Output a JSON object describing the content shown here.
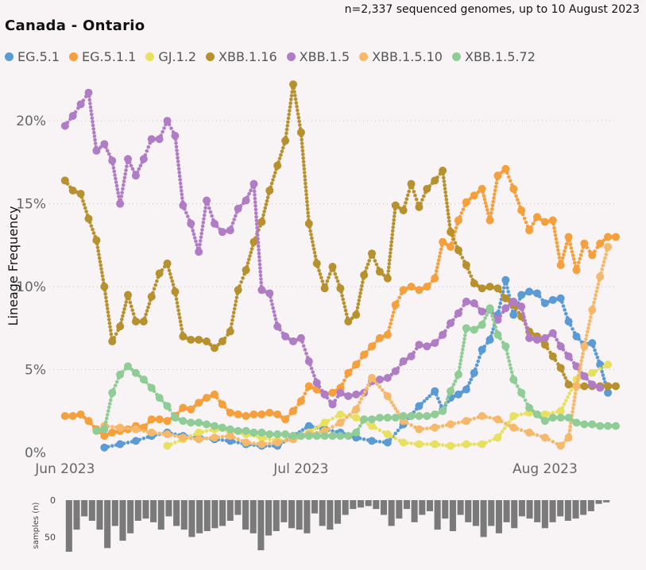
{
  "chart_data": {
    "type": "line",
    "title": "Canada - Ontario",
    "subtitle": "n=2,337 sequenced genomes, up to 10 August 2023",
    "ylabel": "Lineage Frequency",
    "ylim": [
      0,
      22.5
    ],
    "yticks": [
      "0%",
      "5%",
      "10%",
      "15%",
      "20%"
    ],
    "ytick_values": [
      0,
      5,
      10,
      15,
      20
    ],
    "xlim": [
      0,
      72
    ],
    "xticks": [
      "Jun 2023",
      "Jul 2023",
      "Aug 2023"
    ],
    "xtick_days": [
      2,
      32,
      63
    ],
    "x_unit": "days since 30 May 2023",
    "series": [
      {
        "name": "EG.5.1",
        "color": "#5b9bd5",
        "x": [
          7,
          9,
          11,
          13,
          15,
          17,
          19,
          21,
          23,
          25,
          27,
          29,
          31,
          33,
          35,
          37,
          39,
          41,
          43,
          45,
          47,
          49,
          50,
          51,
          52,
          53,
          54,
          55,
          56,
          57,
          58,
          59,
          60,
          61,
          62,
          63,
          64,
          65,
          66,
          67,
          68,
          69,
          70,
          71
        ],
        "y": [
          0.3,
          0.5,
          0.7,
          1.0,
          1.2,
          1.0,
          0.9,
          0.8,
          0.7,
          0.5,
          0.4,
          0.4,
          1.0,
          1.6,
          1.4,
          1.2,
          0.9,
          0.7,
          0.6,
          1.7,
          2.8,
          3.7,
          2.6,
          3.3,
          3.5,
          3.8,
          4.8,
          6.2,
          6.8,
          8.3,
          10.4,
          8.3,
          9.5,
          9.7,
          9.6,
          9.0,
          9.2,
          9.3,
          7.9,
          7.0,
          6.5,
          6.6,
          5.3,
          3.6
        ]
      },
      {
        "name": "EG.5.1.1",
        "color": "#f5a03d",
        "x": [
          2,
          3,
          4,
          5,
          6,
          7,
          8,
          9,
          10,
          11,
          12,
          13,
          14,
          15,
          16,
          17,
          18,
          19,
          20,
          21,
          22,
          23,
          24,
          25,
          26,
          27,
          28,
          29,
          30,
          31,
          32,
          33,
          34,
          35,
          36,
          37,
          38,
          39,
          40,
          41,
          42,
          43,
          44,
          45,
          46,
          47,
          48,
          49,
          50,
          51,
          52,
          53,
          54,
          55,
          56,
          57,
          58,
          59,
          60,
          61,
          62,
          63,
          64,
          65,
          66,
          67,
          68,
          69,
          70,
          71,
          72
        ],
        "y": [
          2.2,
          2.2,
          2.3,
          1.9,
          1.4,
          1.0,
          1.2,
          1.3,
          1.4,
          1.6,
          1.5,
          2.0,
          2.0,
          1.9,
          2.2,
          2.7,
          2.6,
          3.0,
          3.3,
          3.5,
          2.9,
          2.4,
          2.3,
          2.2,
          2.3,
          2.3,
          2.4,
          2.3,
          2.0,
          2.5,
          3.1,
          4.0,
          3.8,
          3.5,
          3.6,
          3.9,
          4.8,
          5.3,
          5.9,
          6.4,
          6.9,
          7.1,
          8.9,
          9.8,
          10.0,
          9.8,
          10.0,
          10.5,
          12.7,
          12.4,
          14.0,
          15.1,
          15.5,
          15.9,
          14.0,
          16.7,
          17.1,
          15.9,
          14.6,
          13.4,
          14.2,
          13.9,
          14.0,
          11.3,
          13.0,
          11.0,
          12.6,
          11.9,
          12.6,
          13.0,
          13.0
        ]
      },
      {
        "name": "GJ.1.2",
        "color": "#e8e060",
        "x": [
          15,
          17,
          19,
          21,
          23,
          25,
          27,
          29,
          31,
          33,
          35,
          37,
          39,
          41,
          43,
          45,
          47,
          49,
          51,
          53,
          55,
          57,
          59,
          61,
          63,
          65,
          67,
          69,
          71
        ],
        "y": [
          0.4,
          0.8,
          1.2,
          1.4,
          1.3,
          1.1,
          0.9,
          0.7,
          0.8,
          1.2,
          1.8,
          2.3,
          2.1,
          1.6,
          1.1,
          0.6,
          0.5,
          0.5,
          0.4,
          0.5,
          0.5,
          0.9,
          2.2,
          2.4,
          2.3,
          2.5,
          4.4,
          4.8,
          5.3
        ]
      },
      {
        "name": "XBB.1.16",
        "color": "#b8912f",
        "x": [
          2,
          3,
          4,
          5,
          6,
          7,
          8,
          9,
          10,
          11,
          12,
          13,
          14,
          15,
          16,
          17,
          18,
          19,
          20,
          21,
          22,
          23,
          24,
          25,
          26,
          27,
          28,
          29,
          30,
          31,
          32,
          33,
          34,
          35,
          36,
          37,
          38,
          39,
          40,
          41,
          42,
          43,
          44,
          45,
          46,
          47,
          48,
          49,
          50,
          51,
          52,
          53,
          54,
          55,
          56,
          57,
          58,
          59,
          60,
          61,
          62,
          63,
          64,
          65,
          66,
          67,
          68,
          69,
          70,
          71,
          72
        ],
        "y": [
          16.4,
          15.8,
          15.6,
          14.1,
          12.8,
          10.0,
          6.7,
          7.6,
          9.5,
          7.9,
          7.9,
          9.4,
          10.8,
          11.4,
          9.7,
          7.0,
          6.8,
          6.8,
          6.7,
          6.3,
          6.7,
          7.3,
          9.8,
          11.0,
          12.7,
          13.9,
          15.8,
          17.3,
          18.8,
          22.2,
          19.3,
          13.8,
          11.4,
          9.9,
          11.2,
          9.9,
          7.9,
          8.3,
          10.7,
          12.0,
          10.9,
          10.5,
          14.9,
          14.6,
          16.2,
          14.8,
          15.9,
          16.4,
          17.0,
          13.3,
          12.2,
          11.3,
          10.2,
          9.9,
          10.0,
          9.9,
          9.3,
          8.9,
          8.2,
          7.3,
          7.0,
          6.5,
          5.8,
          5.1,
          4.1,
          4.0,
          4.0,
          4.0,
          4.0,
          4.0,
          4.0
        ]
      },
      {
        "name": "XBB.1.5",
        "color": "#b07cc6",
        "x": [
          2,
          3,
          4,
          5,
          6,
          7,
          8,
          9,
          10,
          11,
          12,
          13,
          14,
          15,
          16,
          17,
          18,
          19,
          20,
          21,
          22,
          23,
          24,
          25,
          26,
          27,
          28,
          29,
          30,
          31,
          32,
          33,
          34,
          35,
          36,
          37,
          38,
          39,
          40,
          41,
          42,
          43,
          44,
          45,
          46,
          47,
          48,
          49,
          50,
          51,
          52,
          53,
          54,
          55,
          56,
          57,
          58,
          59,
          60,
          61,
          62,
          63,
          64,
          65,
          66,
          67,
          68,
          69,
          70
        ],
        "y": [
          19.7,
          20.3,
          21.0,
          21.7,
          18.2,
          18.6,
          17.6,
          15.0,
          17.7,
          16.7,
          17.7,
          18.9,
          18.9,
          20.0,
          19.1,
          14.9,
          13.8,
          12.1,
          15.2,
          13.8,
          13.3,
          13.4,
          14.7,
          15.2,
          16.2,
          9.8,
          9.6,
          7.6,
          7.0,
          6.7,
          6.9,
          5.5,
          4.2,
          3.5,
          2.9,
          3.6,
          3.4,
          3.5,
          3.6,
          4.3,
          4.4,
          4.5,
          4.9,
          5.5,
          5.8,
          6.5,
          6.4,
          6.6,
          7.1,
          7.8,
          8.4,
          9.1,
          9.0,
          8.5,
          8.6,
          8.0,
          8.7,
          9.1,
          8.8,
          6.9,
          6.8,
          6.9,
          7.2,
          6.4,
          5.8,
          5.2,
          4.6,
          4.1,
          3.9
        ]
      },
      {
        "name": "XBB.1.5.10",
        "color": "#f6b96b",
        "x": [
          7,
          9,
          11,
          13,
          15,
          17,
          19,
          21,
          23,
          25,
          27,
          29,
          31,
          33,
          35,
          37,
          39,
          41,
          43,
          45,
          47,
          49,
          51,
          53,
          55,
          57,
          59,
          61,
          63,
          65,
          66,
          67,
          68,
          69,
          70,
          71
        ],
        "y": [
          1.6,
          1.5,
          1.4,
          1.2,
          1.1,
          0.9,
          0.8,
          0.9,
          1.0,
          0.6,
          0.5,
          0.6,
          0.8,
          1.1,
          1.3,
          1.8,
          2.6,
          4.5,
          3.4,
          1.9,
          1.4,
          1.5,
          1.7,
          1.9,
          2.2,
          2.0,
          1.5,
          1.2,
          0.9,
          0.4,
          0.9,
          4.0,
          6.4,
          8.6,
          10.6,
          12.4
        ]
      },
      {
        "name": "XBB.1.5.72",
        "color": "#8fcc96",
        "x": [
          6,
          7,
          8,
          9,
          10,
          11,
          12,
          13,
          14,
          15,
          16,
          17,
          18,
          19,
          20,
          21,
          22,
          23,
          24,
          25,
          26,
          27,
          28,
          29,
          30,
          31,
          32,
          33,
          34,
          35,
          36,
          37,
          38,
          39,
          40,
          41,
          42,
          43,
          44,
          45,
          46,
          47,
          48,
          49,
          50,
          51,
          52,
          53,
          54,
          55,
          56,
          57,
          58,
          59,
          60,
          61,
          62,
          63,
          64,
          65,
          66,
          67,
          68,
          69,
          70,
          71,
          72
        ],
        "y": [
          1.3,
          1.4,
          3.6,
          4.7,
          5.2,
          4.8,
          4.4,
          3.9,
          3.3,
          2.8,
          2.1,
          1.9,
          1.8,
          1.8,
          1.7,
          1.6,
          1.5,
          1.4,
          1.3,
          1.3,
          1.2,
          1.2,
          1.1,
          1.1,
          1.1,
          1.0,
          1.0,
          1.0,
          1.0,
          1.0,
          1.0,
          1.0,
          1.0,
          1.2,
          2.0,
          2.0,
          2.1,
          2.1,
          2.1,
          2.2,
          2.2,
          2.2,
          2.2,
          2.3,
          2.5,
          3.7,
          4.7,
          7.5,
          7.4,
          7.7,
          8.7,
          7.1,
          6.4,
          4.4,
          3.6,
          2.7,
          2.3,
          1.9,
          2.1,
          2.1,
          2.1,
          1.8,
          1.7,
          1.7,
          1.6,
          1.6,
          1.6
        ]
      }
    ],
    "samples": {
      "ylabel": "samples (n)",
      "ticks": [
        "0",
        "50"
      ],
      "tick_values": [
        0,
        50
      ],
      "values": [
        70,
        40,
        22,
        28,
        40,
        65,
        35,
        55,
        45,
        28,
        25,
        30,
        40,
        22,
        35,
        40,
        50,
        45,
        42,
        38,
        35,
        28,
        20,
        40,
        45,
        68,
        48,
        42,
        30,
        38,
        40,
        45,
        18,
        35,
        40,
        32,
        20,
        12,
        10,
        8,
        12,
        20,
        35,
        25,
        12,
        30,
        20,
        15,
        40,
        25,
        42,
        20,
        30,
        35,
        50,
        35,
        45,
        30,
        38,
        22,
        25,
        30,
        38,
        30,
        22,
        28,
        25,
        20,
        15,
        5,
        3
      ]
    }
  }
}
